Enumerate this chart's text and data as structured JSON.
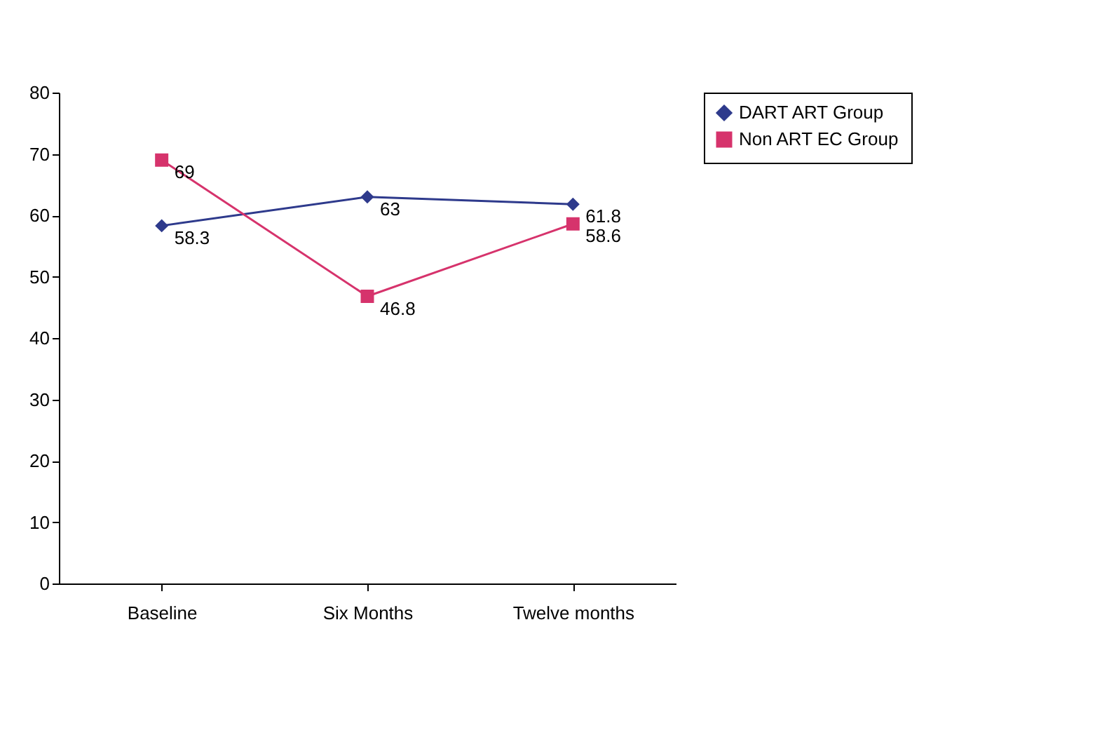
{
  "chart_data": {
    "type": "line",
    "categories": [
      "Baseline",
      "Six Months",
      "Twelve months"
    ],
    "series": [
      {
        "name": "DART ART Group",
        "color": "#2e3a8c",
        "marker": "diamond",
        "values": [
          58.3,
          63,
          61.8
        ]
      },
      {
        "name": "Non ART EC Group",
        "color": "#d6336c",
        "marker": "square",
        "values": [
          69,
          46.8,
          58.6
        ]
      }
    ],
    "ylim": [
      0,
      80
    ],
    "yticks": [
      0,
      10,
      20,
      30,
      40,
      50,
      60,
      70,
      80
    ],
    "grid": false,
    "legend": "right",
    "data_labels": true,
    "line_style": "solid"
  }
}
